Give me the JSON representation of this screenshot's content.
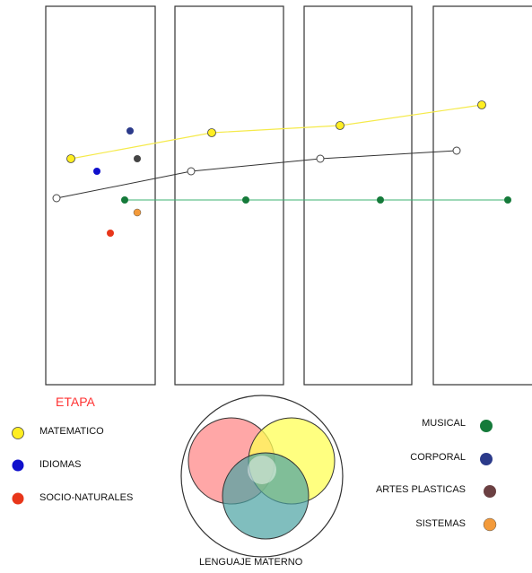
{
  "stage_label": "ETAPA",
  "left_legend": [
    {
      "label": "MATEMATICO",
      "color": "#ffee22"
    },
    {
      "label": "IDIOMAS",
      "color": "#1010cc"
    },
    {
      "label": "SOCIO-NATURALES",
      "color": "#e8361a"
    }
  ],
  "right_legend": [
    {
      "label": "MUSICAL",
      "color": "#157a3a"
    },
    {
      "label": "CORPORAL",
      "color": "#2b3a8a"
    },
    {
      "label": "ARTES PLASTICAS",
      "color": "#6b4042"
    },
    {
      "label": "SISTEMAS",
      "color": "#f39a3a"
    }
  ],
  "venn_caption": "LENGUAJE MATERNO",
  "colors": {
    "matematico_line": "#f5ea4a",
    "lenguaje_line": "#333333",
    "musical_line": "#3cb371",
    "venn_red": "#ff8a8a",
    "venn_yellow": "#ffff55",
    "venn_teal": "#4aa3a3"
  }
}
